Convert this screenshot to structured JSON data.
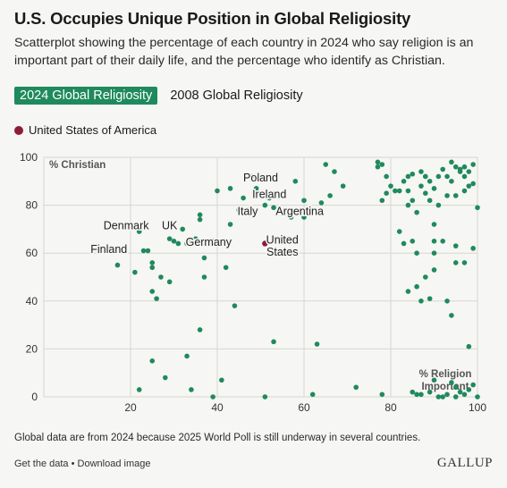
{
  "title": "U.S. Occupies Unique Position in Global Religiosity",
  "subtitle": "Scatterplot showing the percentage of each country in 2024 who say religion is an important part of their daily life, and the percentage who identify as Christian.",
  "tabs": [
    {
      "label": "2024 Global Religiosity",
      "active": true
    },
    {
      "label": "2008 Global Religiosity",
      "active": false
    }
  ],
  "legend": {
    "label": "United States of America",
    "color": "#8c1c3a"
  },
  "note": "Global data are from 2024 because 2025 World Poll is still underway in several countries.",
  "footer": {
    "get_data": "Get the data",
    "separator": "•",
    "download": "Download image"
  },
  "brand": "GALLUP",
  "colors": {
    "point": "#1f8a5c",
    "highlight": "#8c1c3a",
    "grid": "#d6d6d2"
  },
  "chart_data": {
    "type": "scatter",
    "xlabel": "% Religion Important",
    "ylabel": "% Christian",
    "xlim": [
      0,
      100
    ],
    "ylim": [
      0,
      100
    ],
    "xticks": [
      20,
      40,
      60,
      80,
      100
    ],
    "yticks": [
      0,
      20,
      40,
      60,
      80,
      100
    ],
    "grid": true,
    "highlight": {
      "x": 51,
      "y": 64
    },
    "labels": [
      {
        "text": "Poland",
        "x": 50,
        "y": 90
      },
      {
        "text": "Ireland",
        "x": 52,
        "y": 83
      },
      {
        "text": "Italy",
        "x": 47,
        "y": 76
      },
      {
        "text": "Argentina",
        "x": 59,
        "y": 76
      },
      {
        "text": "Denmark",
        "x": 19,
        "y": 70
      },
      {
        "text": "UK",
        "x": 29,
        "y": 70
      },
      {
        "text": "Germany",
        "x": 38,
        "y": 63
      },
      {
        "text": "Finland",
        "x": 15,
        "y": 60
      },
      {
        "text": "United",
        "x": 55,
        "y": 64
      },
      {
        "text": "States",
        "x": 55,
        "y": 59
      }
    ],
    "points": [
      [
        17,
        55
      ],
      [
        21,
        52
      ],
      [
        22,
        69
      ],
      [
        23,
        61
      ],
      [
        25,
        56
      ],
      [
        25,
        54
      ],
      [
        25,
        44
      ],
      [
        26,
        41
      ],
      [
        27,
        50
      ],
      [
        29,
        66
      ],
      [
        29,
        48
      ],
      [
        30,
        65
      ],
      [
        31,
        64
      ],
      [
        32,
        70
      ],
      [
        33,
        64
      ],
      [
        34,
        65
      ],
      [
        35,
        66
      ],
      [
        36,
        76
      ],
      [
        36,
        74
      ],
      [
        37,
        58
      ],
      [
        37,
        50
      ],
      [
        39,
        65
      ],
      [
        40,
        86
      ],
      [
        42,
        54
      ],
      [
        43,
        87
      ],
      [
        43,
        72
      ],
      [
        45,
        78
      ],
      [
        46,
        83
      ],
      [
        47,
        78
      ],
      [
        48,
        92
      ],
      [
        49,
        87
      ],
      [
        51,
        80
      ],
      [
        52,
        83
      ],
      [
        53,
        79
      ],
      [
        57,
        75
      ],
      [
        58,
        90
      ],
      [
        60,
        82
      ],
      [
        60,
        75
      ],
      [
        64,
        81
      ],
      [
        65,
        97
      ],
      [
        66,
        84
      ],
      [
        67,
        94
      ],
      [
        69,
        88
      ],
      [
        77,
        98
      ],
      [
        77,
        96
      ],
      [
        78,
        97
      ],
      [
        79,
        92
      ],
      [
        78,
        82
      ],
      [
        79,
        85
      ],
      [
        80,
        88
      ],
      [
        81,
        86
      ],
      [
        82,
        86
      ],
      [
        83,
        90
      ],
      [
        84,
        92
      ],
      [
        84,
        86
      ],
      [
        84,
        80
      ],
      [
        85,
        93
      ],
      [
        85,
        82
      ],
      [
        86,
        77
      ],
      [
        87,
        94
      ],
      [
        87,
        88
      ],
      [
        88,
        92
      ],
      [
        88,
        85
      ],
      [
        89,
        82
      ],
      [
        89,
        90
      ],
      [
        90,
        87
      ],
      [
        91,
        92
      ],
      [
        92,
        95
      ],
      [
        93,
        84
      ],
      [
        94,
        98
      ],
      [
        94,
        90
      ],
      [
        95,
        96
      ],
      [
        96,
        94
      ],
      [
        97,
        92
      ],
      [
        97,
        96
      ],
      [
        98,
        88
      ],
      [
        99,
        97
      ],
      [
        86,
        60
      ],
      [
        86,
        46
      ],
      [
        87,
        40
      ],
      [
        88,
        50
      ],
      [
        89,
        41
      ],
      [
        90,
        65
      ],
      [
        90,
        60
      ],
      [
        90,
        53
      ],
      [
        92,
        65
      ],
      [
        93,
        40
      ],
      [
        94,
        34
      ],
      [
        95,
        63
      ],
      [
        95,
        56
      ],
      [
        97,
        56
      ],
      [
        99,
        62
      ],
      [
        100,
        79
      ],
      [
        98,
        21
      ],
      [
        82,
        69
      ],
      [
        83,
        64
      ],
      [
        84,
        44
      ],
      [
        85,
        65
      ],
      [
        90,
        72
      ],
      [
        88,
        92
      ],
      [
        91,
        80
      ],
      [
        93,
        92
      ],
      [
        95,
        84
      ],
      [
        97,
        86
      ],
      [
        96,
        95
      ],
      [
        98,
        94
      ],
      [
        99,
        89
      ],
      [
        24,
        61
      ],
      [
        36,
        28
      ],
      [
        33,
        17
      ],
      [
        28,
        8
      ],
      [
        25,
        15
      ],
      [
        22,
        3
      ],
      [
        34,
        3
      ],
      [
        39,
        0
      ],
      [
        41,
        7
      ],
      [
        44,
        38
      ],
      [
        53,
        23
      ],
      [
        63,
        22
      ],
      [
        62,
        1
      ],
      [
        51,
        0
      ],
      [
        72,
        4
      ],
      [
        78,
        1
      ],
      [
        85,
        2
      ],
      [
        86,
        1
      ],
      [
        87,
        1
      ],
      [
        89,
        2
      ],
      [
        90,
        7
      ],
      [
        91,
        0
      ],
      [
        93,
        1
      ],
      [
        94,
        6
      ],
      [
        95,
        4
      ],
      [
        96,
        2
      ],
      [
        97,
        1
      ],
      [
        98,
        3
      ],
      [
        99,
        5
      ],
      [
        100,
        0
      ],
      [
        92,
        0
      ],
      [
        95,
        0
      ]
    ]
  }
}
